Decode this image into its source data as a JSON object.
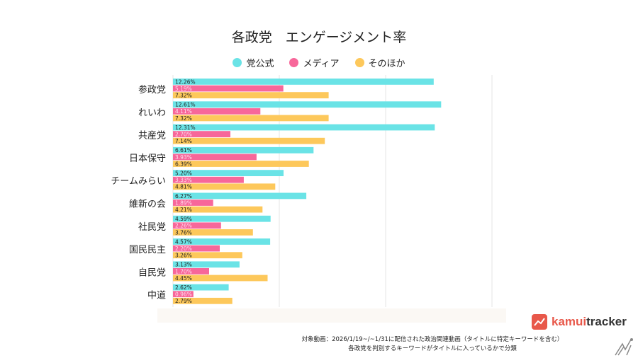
{
  "chart_data": {
    "type": "bar",
    "orientation": "horizontal",
    "title": "各政党　エンゲージメント率",
    "categories": [
      "参政党",
      "れいわ",
      "共産党",
      "日本保守",
      "チームみらい",
      "維新の会",
      "社民党",
      "国民民主",
      "自民党",
      "中道"
    ],
    "series": [
      {
        "name": "党公式",
        "color": "#6ae3e6",
        "values": [
          12.26,
          12.61,
          12.31,
          6.61,
          5.2,
          6.27,
          4.59,
          4.57,
          3.13,
          2.62
        ],
        "labels": [
          "12.26%",
          "12.61%",
          "12.31%",
          "6.61%",
          "5.20%",
          "6.27%",
          "4.59%",
          "4.57%",
          "3.13%",
          "2.62%"
        ]
      },
      {
        "name": "メディア",
        "color": "#f7679a",
        "values": [
          5.19,
          4.11,
          2.7,
          3.93,
          3.33,
          1.89,
          2.26,
          2.2,
          1.7,
          0.96
        ],
        "labels": [
          "5.19%",
          "4.11%",
          "2.70%",
          "3.93%",
          "3.33%",
          "1.89%",
          "2.26%",
          "2.20%",
          "1.70%",
          "0.96%"
        ]
      },
      {
        "name": "そのほか",
        "color": "#fdc85b",
        "values": [
          7.32,
          7.32,
          7.14,
          6.39,
          4.81,
          4.21,
          3.76,
          3.26,
          4.45,
          2.79
        ],
        "labels": [
          "7.32%",
          "7.32%",
          "7.14%",
          "6.39%",
          "4.81%",
          "4.21%",
          "3.76%",
          "3.26%",
          "4.45%",
          "2.79%"
        ]
      }
    ],
    "xlim": [
      0,
      15
    ],
    "grid": true,
    "legend": "top"
  },
  "footnote": [
    "対象動画：2026/1/19~/~1/31に配信された政治関連動画（タイトルに特定キーワードを含む）",
    "各政党を判別するキーワードがタイトルに入っているかで分類"
  ],
  "logo": "kamuitracker"
}
